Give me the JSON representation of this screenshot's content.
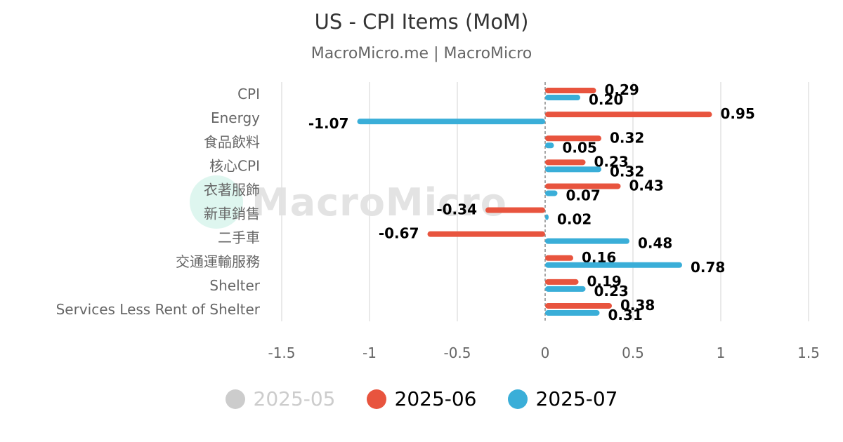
{
  "title": "US - CPI Items (MoM)",
  "subtitle": "MacroMicro.me | MacroMicro",
  "watermark": "MacroMicro",
  "legend": [
    {
      "label": "2025-05",
      "color": "#cccccc",
      "active": false
    },
    {
      "label": "2025-06",
      "color": "#e8543e",
      "active": true
    },
    {
      "label": "2025-07",
      "color": "#3aaed8",
      "active": true
    }
  ],
  "chart_data": {
    "type": "bar",
    "orientation": "horizontal",
    "categories": [
      "CPI",
      "Energy",
      "食品飲料",
      "核心CPI",
      "衣著服飾",
      "新車銷售",
      "二手車",
      "交通運輸服務",
      "Shelter",
      "Services Less Rent of Shelter"
    ],
    "series": [
      {
        "name": "2025-06",
        "color": "#e8543e",
        "values": [
          0.29,
          0.95,
          0.32,
          0.23,
          0.43,
          -0.34,
          -0.67,
          0.16,
          0.19,
          0.38
        ],
        "labels": [
          "0.29",
          "0.95",
          "0.32",
          "0.23",
          "0.43",
          "-0.34",
          "-0.67",
          "0.16",
          "0.19",
          "0.38"
        ]
      },
      {
        "name": "2025-07",
        "color": "#3aaed8",
        "values": [
          0.2,
          -1.07,
          0.05,
          0.32,
          0.07,
          0.02,
          0.48,
          0.78,
          0.23,
          0.31
        ],
        "labels": [
          "0.20",
          "-1.07",
          "0.05",
          "0.32",
          "0.07",
          "0.02",
          "0.48",
          "0.78",
          "0.23",
          "0.31"
        ]
      }
    ],
    "xlim": [
      -1.5,
      1.5
    ],
    "xticks": [
      -1.5,
      -1,
      -0.5,
      0,
      0.5,
      1,
      1.5
    ],
    "xtick_labels": [
      "-1.5",
      "-1",
      "-0.5",
      "0",
      "0.5",
      "1",
      "1.5"
    ],
    "grid": true,
    "legend_position": "bottom"
  }
}
